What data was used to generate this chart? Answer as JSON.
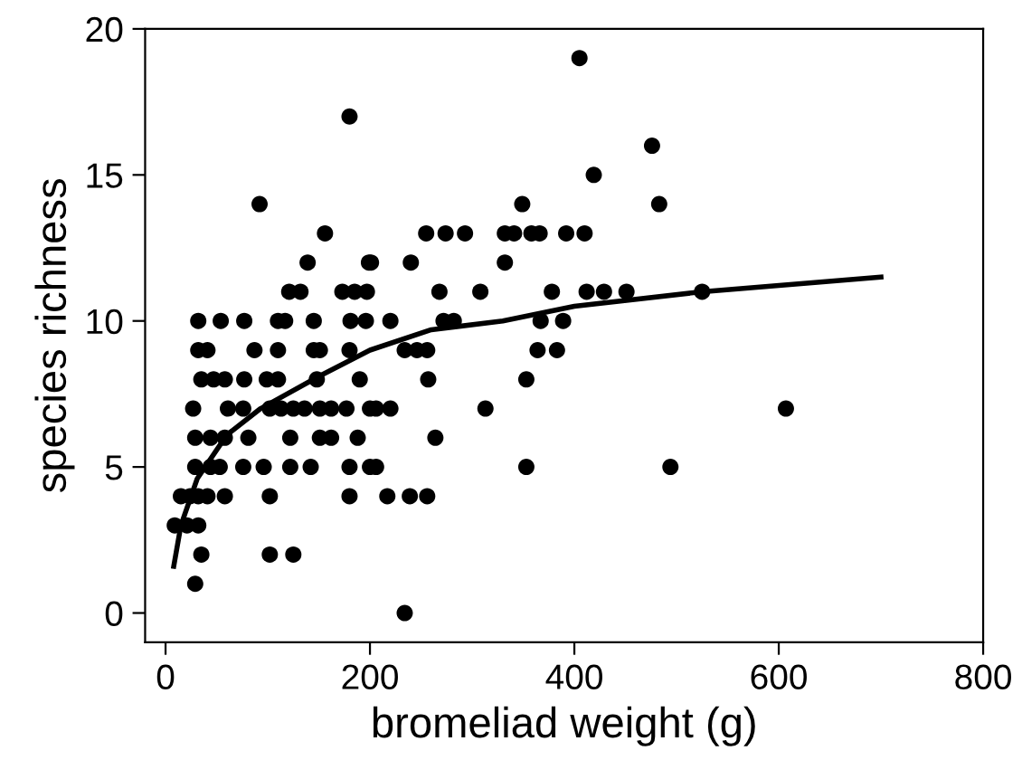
{
  "chart_data": {
    "type": "scatter",
    "xlabel": "bromeliad weight (g)",
    "ylabel": "species richness",
    "xlim": [
      -20,
      800
    ],
    "ylim": [
      -1,
      20
    ],
    "xticks": [
      0,
      200,
      400,
      600,
      800
    ],
    "yticks": [
      0,
      5,
      10,
      15,
      20
    ],
    "grid": false,
    "legend": false,
    "marker": "circle",
    "series": [
      {
        "color": "#000000",
        "x": [
          405,
          180,
          476,
          419,
          92,
          349,
          483,
          156,
          255,
          274,
          293,
          332,
          341,
          358,
          366,
          392,
          410,
          139,
          199,
          201,
          240,
          332,
          121,
          132,
          173,
          185,
          197,
          268,
          308,
          378,
          412,
          429,
          451,
          525,
          32,
          54,
          77,
          110,
          117,
          145,
          181,
          196,
          220,
          272,
          282,
          367,
          389,
          32,
          41,
          87,
          110,
          145,
          151,
          180,
          234,
          246,
          256,
          364,
          383,
          35,
          47,
          58,
          77,
          99,
          110,
          148,
          190,
          257,
          353,
          27,
          61,
          76,
          102,
          113,
          125,
          136,
          151,
          162,
          177,
          200,
          206,
          220,
          313,
          607,
          29,
          44,
          58,
          81,
          122,
          151,
          162,
          188,
          264,
          29,
          44,
          53,
          76,
          96,
          122,
          142,
          180,
          200,
          206,
          353,
          494,
          15,
          24,
          32,
          41,
          58,
          102,
          180,
          217,
          239,
          256,
          9,
          21,
          32,
          35,
          102,
          125,
          29,
          234
        ],
        "values": [
          19,
          17,
          16,
          15,
          14,
          14,
          14,
          13,
          13,
          13,
          13,
          13,
          13,
          13,
          13,
          13,
          13,
          12,
          12,
          12,
          12,
          12,
          11,
          11,
          11,
          11,
          11,
          11,
          11,
          11,
          11,
          11,
          11,
          11,
          10,
          10,
          10,
          10,
          10,
          10,
          10,
          10,
          10,
          10,
          10,
          10,
          10,
          9,
          9,
          9,
          9,
          9,
          9,
          9,
          9,
          9,
          9,
          9,
          9,
          8,
          8,
          8,
          8,
          8,
          8,
          8,
          8,
          8,
          8,
          7,
          7,
          7,
          7,
          7,
          7,
          7,
          7,
          7,
          7,
          7,
          7,
          7,
          7,
          7,
          6,
          6,
          6,
          6,
          6,
          6,
          6,
          6,
          6,
          5,
          5,
          5,
          5,
          5,
          5,
          5,
          5,
          5,
          5,
          5,
          5,
          4,
          4,
          4,
          4,
          4,
          4,
          4,
          4,
          4,
          4,
          3,
          3,
          3,
          2,
          2,
          2,
          1,
          0
        ]
      },
      {
        "type": "line",
        "color": "#000000",
        "marker": "none",
        "x": [
          8,
          15,
          31,
          60,
          93,
          150,
          200,
          260,
          330,
          400,
          525,
          700
        ],
        "values": [
          1.6,
          3.0,
          4.6,
          6.1,
          7.0,
          8.1,
          9.0,
          9.7,
          10.0,
          10.5,
          11.0,
          11.5
        ]
      }
    ]
  }
}
